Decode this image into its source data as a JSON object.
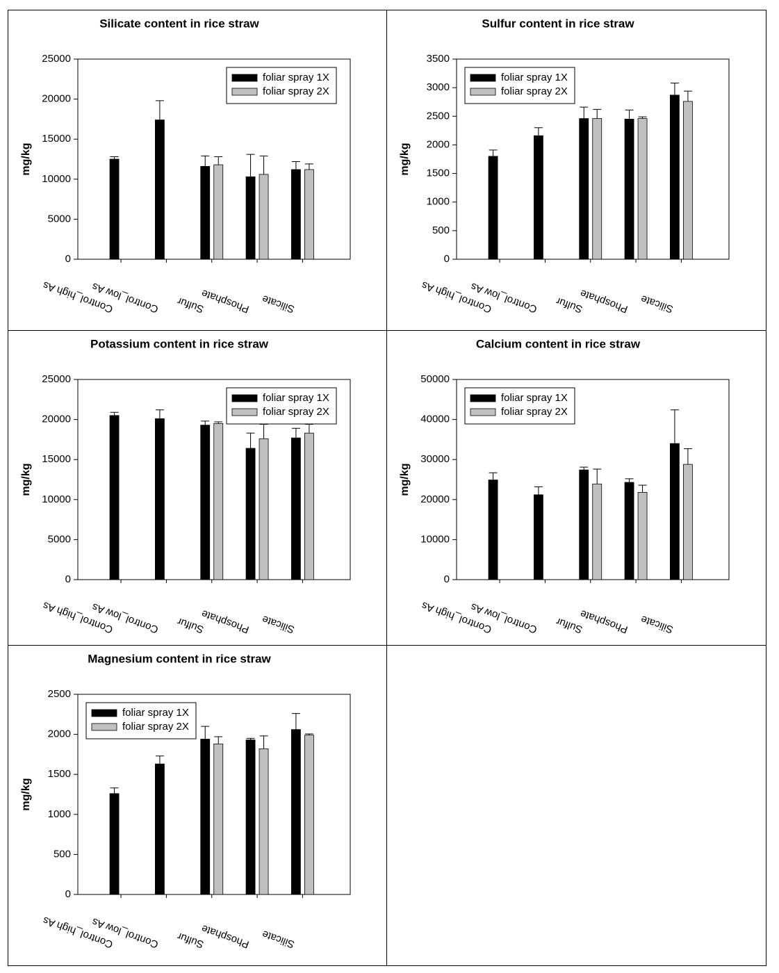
{
  "chart_data": [
    {
      "type": "bar",
      "title": "Silicate content in rice straw",
      "ylabel": "mg/kg",
      "categories": [
        "Control_high As",
        "Control_low As",
        "Sulfur",
        "Phosphate",
        "Silicate"
      ],
      "ylim": [
        0,
        25000
      ],
      "yticks": [
        0,
        5000,
        10000,
        15000,
        20000,
        25000
      ],
      "legend": "upper right",
      "series": [
        {
          "name": "foliar spray 1X",
          "color": "#000000",
          "values": [
            12500,
            17400,
            11600,
            10300,
            11200
          ],
          "errors": [
            300,
            2400,
            1300,
            2800,
            1000
          ]
        },
        {
          "name": "foliar spray 2X",
          "color": "#c0c0c0",
          "values": [
            null,
            null,
            11800,
            10600,
            11200
          ],
          "errors": [
            null,
            null,
            1000,
            2300,
            700
          ]
        }
      ]
    },
    {
      "type": "bar",
      "title": "Sulfur content in rice straw",
      "ylabel": "mg/kg",
      "categories": [
        "Control_high As",
        "Control_low As",
        "Sulfur",
        "Phosphate",
        "Silicate"
      ],
      "ylim": [
        0,
        3500
      ],
      "yticks": [
        0,
        500,
        1000,
        1500,
        2000,
        2500,
        3000,
        3500
      ],
      "legend": "upper left",
      "series": [
        {
          "name": "foliar spray 1X",
          "color": "#000000",
          "values": [
            1800,
            2160,
            2460,
            2450,
            2870
          ],
          "errors": [
            110,
            140,
            200,
            160,
            210
          ]
        },
        {
          "name": "foliar spray 2X",
          "color": "#c0c0c0",
          "values": [
            null,
            null,
            2460,
            2460,
            2760
          ],
          "errors": [
            null,
            null,
            160,
            30,
            180
          ]
        }
      ]
    },
    {
      "type": "bar",
      "title": "Potassium content in rice straw",
      "ylabel": "mg/kg",
      "categories": [
        "Control_high As",
        "Control_low As",
        "Sulfur",
        "Phosphate",
        "Silicate"
      ],
      "ylim": [
        0,
        25000
      ],
      "yticks": [
        0,
        5000,
        10000,
        15000,
        20000,
        25000
      ],
      "legend": "upper right",
      "series": [
        {
          "name": "foliar spray 1X",
          "color": "#000000",
          "values": [
            20500,
            20100,
            19300,
            16400,
            17700
          ],
          "errors": [
            400,
            1100,
            500,
            1900,
            1200
          ]
        },
        {
          "name": "foliar spray 2X",
          "color": "#c0c0c0",
          "values": [
            null,
            null,
            19500,
            17600,
            18300
          ],
          "errors": [
            null,
            null,
            200,
            1800,
            1100
          ]
        }
      ]
    },
    {
      "type": "bar",
      "title": "Calcium content in rice straw",
      "ylabel": "mg/kg",
      "categories": [
        "Control_high As",
        "Control_low As",
        "Sulfur",
        "Phosphate",
        "Silicate"
      ],
      "ylim": [
        0,
        50000
      ],
      "yticks": [
        0,
        10000,
        20000,
        30000,
        40000,
        50000
      ],
      "legend": "upper left",
      "series": [
        {
          "name": "foliar spray 1X",
          "color": "#000000",
          "values": [
            24900,
            21200,
            27400,
            24300,
            34000
          ],
          "errors": [
            1800,
            2000,
            700,
            900,
            8400
          ]
        },
        {
          "name": "foliar spray 2X",
          "color": "#c0c0c0",
          "values": [
            null,
            null,
            23900,
            21800,
            28800
          ],
          "errors": [
            null,
            null,
            3700,
            1800,
            3900
          ]
        }
      ]
    },
    {
      "type": "bar",
      "title": "Magnesium content in rice straw",
      "ylabel": "mg/kg",
      "categories": [
        "Control_high As",
        "Control_low As",
        "Sulfur",
        "Phosphate",
        "Silicate"
      ],
      "ylim": [
        0,
        2500
      ],
      "yticks": [
        0,
        500,
        1000,
        1500,
        2000,
        2500
      ],
      "legend": "upper left",
      "series": [
        {
          "name": "foliar spray 1X",
          "color": "#000000",
          "values": [
            1260,
            1630,
            1940,
            1930,
            2060
          ],
          "errors": [
            70,
            100,
            160,
            20,
            200
          ]
        },
        {
          "name": "foliar spray 2X",
          "color": "#c0c0c0",
          "values": [
            null,
            null,
            1880,
            1820,
            1990
          ],
          "errors": [
            null,
            null,
            90,
            160,
            15
          ]
        }
      ]
    }
  ]
}
